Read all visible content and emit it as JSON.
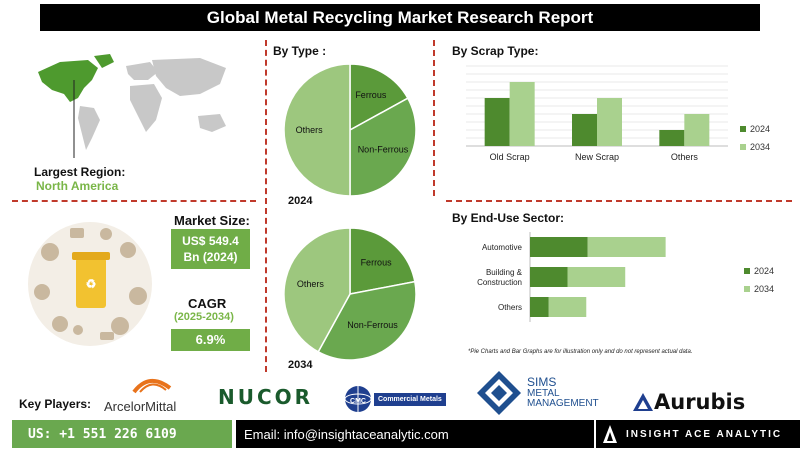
{
  "header": {
    "title": "Global Metal Recycling Market Research Report"
  },
  "region": {
    "label": "Largest Region:",
    "value": "North America"
  },
  "market_size": {
    "label": "Market Size:",
    "value_line1": "US$ 549.4",
    "value_line2": "Bn (2024)"
  },
  "cagr": {
    "label": "CAGR",
    "period": "(2025-2034)",
    "value": "6.9%"
  },
  "sections": {
    "by_type": "By Type :",
    "by_scrap": "By Scrap Type:",
    "by_end_use": "By End-Use Sector:"
  },
  "note": "*Pie Charts and Bar Graphs are for illustration only and do not represent actual data.",
  "key_players": {
    "label": "Key Players:",
    "logos": [
      "ArcelorMittal",
      "NUCOR",
      "Commercial Metals",
      "SIMS",
      "METAL",
      "MANAGEMENT",
      "Aurubis",
      "CMC"
    ]
  },
  "footer": {
    "phone": "US: +1 551 226 6109",
    "email": "Email: info@insightaceanalytic.com",
    "brand": "INSIGHT ACE ANALYTIC"
  },
  "colors": {
    "dark_green": "#4e8a2e",
    "light_green": "#a9d18e",
    "mid_green": "#70ad47",
    "dash_red": "#c0392b"
  },
  "chart_data": [
    {
      "type": "pie",
      "label": "2024",
      "slices": [
        {
          "name": "Ferrous",
          "value": 17,
          "color": "#5b9a3a"
        },
        {
          "name": "Non-Ferrous",
          "value": 33,
          "color": "#6aa84f"
        },
        {
          "name": "Others",
          "value": 50,
          "color": "#9dc77e"
        }
      ]
    },
    {
      "type": "pie",
      "label": "2034",
      "slices": [
        {
          "name": "Ferrous",
          "value": 22,
          "color": "#5b9a3a"
        },
        {
          "name": "Non-Ferrous",
          "value": 36,
          "color": "#6aa84f"
        },
        {
          "name": "Others",
          "value": 42,
          "color": "#9dc77e"
        }
      ]
    },
    {
      "type": "bar",
      "orientation": "vertical",
      "categories": [
        "Old Scrap",
        "New Scrap",
        "Others"
      ],
      "series": [
        {
          "name": "2024",
          "values": [
            6,
            4,
            2
          ],
          "color": "#4e8a2e"
        },
        {
          "name": "2034",
          "values": [
            8,
            6,
            4
          ],
          "color": "#a9d18e"
        }
      ],
      "ylim": [
        0,
        10
      ],
      "grid": true,
      "legend": "right"
    },
    {
      "type": "bar",
      "orientation": "horizontal",
      "stacked": true,
      "categories": [
        "Automotive",
        "Building & Construction",
        "Others"
      ],
      "series": [
        {
          "name": "2024",
          "values": [
            4,
            2.6,
            1.3
          ],
          "color": "#4e8a2e"
        },
        {
          "name": "2034",
          "values": [
            5.4,
            4,
            2.6
          ],
          "color": "#a9d18e"
        }
      ],
      "xlim": [
        0,
        14
      ],
      "legend": "right"
    }
  ]
}
